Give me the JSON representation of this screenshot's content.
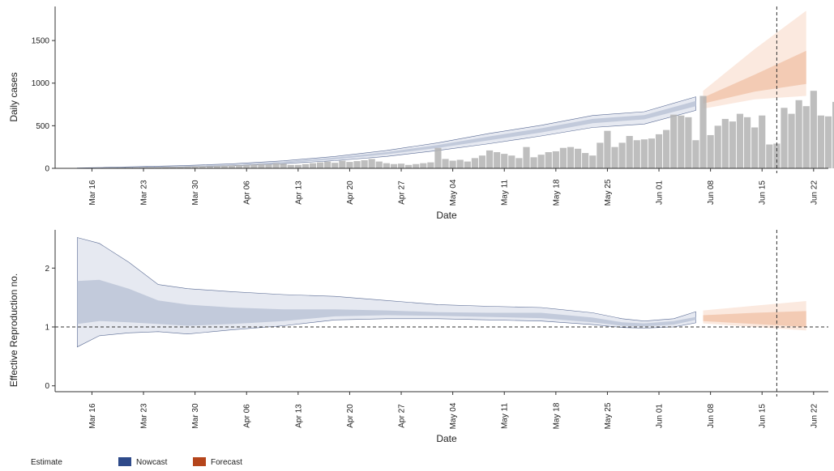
{
  "chart_data": [
    {
      "type": "bar",
      "panel": "daily-cases",
      "xlabel": "Date",
      "ylabel": "Daily cases",
      "ylim": [
        0,
        1900
      ],
      "yticks": [
        0,
        500,
        1000,
        1500
      ],
      "xlim": [
        "2020-03-11",
        "2020-06-24"
      ],
      "x_tick_labels": [
        "Mar 16",
        "Mar 23",
        "Mar 30",
        "Apr 06",
        "Apr 13",
        "Apr 20",
        "Apr 27",
        "May 04",
        "May 11",
        "May 18",
        "May 25",
        "Jun 01",
        "Jun 08",
        "Jun 15",
        "Jun 22"
      ],
      "x_tick_dates": [
        "2020-03-16",
        "2020-03-23",
        "2020-03-30",
        "2020-04-06",
        "2020-04-13",
        "2020-04-20",
        "2020-04-27",
        "2020-05-04",
        "2020-05-11",
        "2020-05-18",
        "2020-05-25",
        "2020-06-01",
        "2020-06-08",
        "2020-06-15",
        "2020-06-22"
      ],
      "grid": false,
      "vline_date": "2020-06-17",
      "bars": {
        "start_date": "2020-03-14",
        "values": [
          2,
          3,
          4,
          5,
          6,
          8,
          9,
          10,
          11,
          12,
          14,
          15,
          17,
          19,
          20,
          22,
          24,
          25,
          27,
          30,
          32,
          35,
          38,
          40,
          45,
          50,
          48,
          60,
          55,
          40,
          40,
          50,
          60,
          70,
          80,
          65,
          90,
          75,
          85,
          95,
          110,
          80,
          60,
          50,
          55,
          40,
          50,
          60,
          70,
          240,
          110,
          90,
          100,
          80,
          120,
          150,
          210,
          190,
          170,
          150,
          120,
          250,
          130,
          160,
          190,
          200,
          240,
          250,
          230,
          180,
          150,
          300,
          440,
          250,
          300,
          380,
          330,
          340,
          350,
          400,
          450,
          630,
          620,
          600,
          330,
          850,
          390,
          500,
          580,
          550,
          640,
          600,
          480,
          620,
          280,
          290,
          710,
          640,
          800,
          730,
          910,
          620,
          610,
          780
        ]
      },
      "series": [
        {
          "name": "Nowcast",
          "x": [
            "2020-03-14",
            "2020-03-21",
            "2020-03-28",
            "2020-04-04",
            "2020-04-11",
            "2020-04-18",
            "2020-04-25",
            "2020-05-02",
            "2020-05-09",
            "2020-05-16",
            "2020-05-23",
            "2020-05-30",
            "2020-06-06"
          ],
          "lower90": [
            0,
            8,
            15,
            30,
            55,
            90,
            140,
            210,
            290,
            380,
            480,
            520,
            680
          ],
          "lower50": [
            1,
            10,
            20,
            38,
            65,
            105,
            165,
            240,
            330,
            420,
            530,
            575,
            730
          ],
          "upper50": [
            3,
            14,
            26,
            46,
            78,
            125,
            190,
            275,
            375,
            470,
            580,
            625,
            790
          ],
          "upper90": [
            4,
            17,
            31,
            53,
            88,
            140,
            210,
            300,
            410,
            505,
            620,
            665,
            840
          ]
        },
        {
          "name": "Forecast",
          "x": [
            "2020-06-07",
            "2020-06-14",
            "2020-06-21"
          ],
          "lower90": [
            700,
            810,
            850
          ],
          "lower50": [
            760,
            900,
            990
          ],
          "upper50": [
            830,
            1100,
            1380
          ],
          "upper90": [
            910,
            1400,
            1850
          ]
        }
      ]
    },
    {
      "type": "area",
      "panel": "reproduction-number",
      "xlabel": "Date",
      "ylabel": "Effective Reproduction no.",
      "ylim": [
        -0.1,
        2.65
      ],
      "yticks": [
        0,
        1,
        2
      ],
      "xlim": [
        "2020-03-11",
        "2020-06-24"
      ],
      "x_tick_labels": [
        "Mar 16",
        "Mar 23",
        "Mar 30",
        "Apr 06",
        "Apr 13",
        "Apr 20",
        "Apr 27",
        "May 04",
        "May 11",
        "May 18",
        "May 25",
        "Jun 01",
        "Jun 08",
        "Jun 15",
        "Jun 22"
      ],
      "x_tick_dates": [
        "2020-03-16",
        "2020-03-23",
        "2020-03-30",
        "2020-04-06",
        "2020-04-13",
        "2020-04-20",
        "2020-04-27",
        "2020-05-04",
        "2020-05-11",
        "2020-05-18",
        "2020-05-25",
        "2020-06-01",
        "2020-06-08",
        "2020-06-15",
        "2020-06-22"
      ],
      "grid": false,
      "hline_y": 1,
      "vline_date": "2020-06-17",
      "series": [
        {
          "name": "Nowcast",
          "x": [
            "2020-03-14",
            "2020-03-17",
            "2020-03-21",
            "2020-03-25",
            "2020-03-29",
            "2020-04-04",
            "2020-04-11",
            "2020-04-18",
            "2020-04-25",
            "2020-05-02",
            "2020-05-09",
            "2020-05-16",
            "2020-05-23",
            "2020-05-27",
            "2020-05-30",
            "2020-06-03",
            "2020-06-06"
          ],
          "lower90": [
            0.66,
            0.85,
            0.9,
            0.92,
            0.88,
            0.95,
            1.02,
            1.12,
            1.14,
            1.14,
            1.12,
            1.1,
            1.04,
            0.99,
            0.98,
            1.0,
            1.07
          ],
          "lower50": [
            1.05,
            1.1,
            1.08,
            1.05,
            1.02,
            1.05,
            1.1,
            1.18,
            1.2,
            1.19,
            1.17,
            1.15,
            1.08,
            1.02,
            1.01,
            1.04,
            1.12
          ],
          "upper50": [
            1.78,
            1.8,
            1.65,
            1.45,
            1.38,
            1.33,
            1.3,
            1.3,
            1.28,
            1.25,
            1.24,
            1.24,
            1.16,
            1.08,
            1.06,
            1.1,
            1.17
          ],
          "upper90": [
            2.52,
            2.42,
            2.1,
            1.72,
            1.65,
            1.6,
            1.55,
            1.52,
            1.45,
            1.38,
            1.35,
            1.33,
            1.24,
            1.14,
            1.1,
            1.14,
            1.26
          ]
        },
        {
          "name": "Forecast",
          "x": [
            "2020-06-07",
            "2020-06-14",
            "2020-06-21"
          ],
          "lower90": [
            1.06,
            1.0,
            0.94
          ],
          "lower50": [
            1.1,
            1.05,
            1.0
          ],
          "upper50": [
            1.2,
            1.24,
            1.27
          ],
          "upper90": [
            1.28,
            1.36,
            1.44
          ]
        }
      ]
    }
  ],
  "legend": {
    "title": "Estimate",
    "items": [
      {
        "label": "Nowcast",
        "color": "#2e4a8a"
      },
      {
        "label": "Forecast",
        "color": "#b5451b"
      }
    ]
  },
  "colors": {
    "bar": "#b3b3b3",
    "nowcast_outer": "#e6e9f1",
    "nowcast_inner": "#c2cadb",
    "forecast_outer": "#fbe9df",
    "forecast_inner": "#f3cbb4",
    "axis": "#333333"
  }
}
